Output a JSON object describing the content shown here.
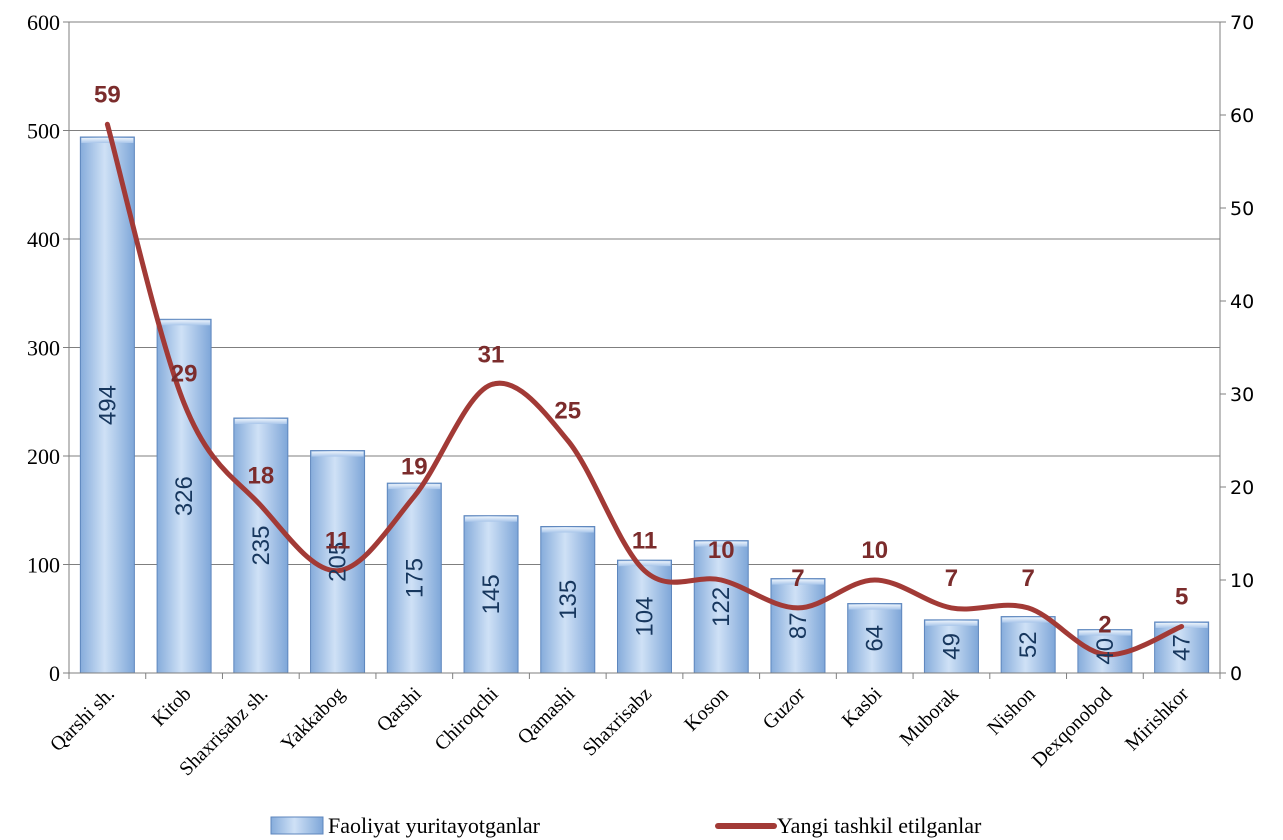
{
  "chart_data": {
    "type": "bar",
    "categories": [
      "Qarshi sh.",
      "Kitob",
      "Shaxrisabz sh.",
      "Yakkabog",
      "Qarshi",
      "Chiroqchi",
      "Qamashi",
      "Shaxrisabz",
      "Koson",
      "Guzor",
      "Kasbi",
      "Muborak",
      "Nishon",
      "Dexqonobod",
      "Mirishkor"
    ],
    "series": [
      {
        "name": "Faoliyat yuritayotganlar",
        "type": "bar",
        "axis": "left",
        "values": [
          494,
          326,
          235,
          205,
          175,
          145,
          135,
          104,
          122,
          87,
          64,
          49,
          52,
          40,
          47
        ],
        "labels": [
          "494",
          "326",
          "235",
          "205",
          "175",
          "145",
          "135",
          "104",
          "122",
          "87",
          "64",
          "49",
          "52",
          "40",
          "47"
        ]
      },
      {
        "name": "Yangi tashkil etilganlar",
        "type": "line",
        "axis": "right",
        "smooth": true,
        "values": [
          59,
          29,
          18,
          11,
          19,
          31,
          25,
          11,
          10,
          7,
          10,
          7,
          7,
          2,
          5
        ],
        "labels": [
          "59",
          "29",
          "18",
          "11",
          "19",
          "31",
          "25",
          "11",
          "10",
          "7",
          "10",
          "7",
          "7",
          "2",
          "5"
        ]
      }
    ],
    "y_left": {
      "ylim": [
        0,
        600
      ],
      "ticks": [
        "0",
        "100",
        "200",
        "300",
        "400",
        "500",
        "600"
      ]
    },
    "y_right": {
      "ylim": [
        0,
        70
      ],
      "ticks": [
        "0",
        "10",
        "20",
        "30",
        "40",
        "50",
        "60",
        "70"
      ]
    },
    "grid": true,
    "legend": "bottom",
    "colors": {
      "bar_light": "#c6dbf3",
      "bar_dark": "#7ea6d8",
      "bar_edge": "#5d86bd",
      "line": "#a23a36",
      "label_line": "#7b2c2c",
      "label_bar": "#17375e",
      "grid": "#7f7f7f"
    }
  }
}
